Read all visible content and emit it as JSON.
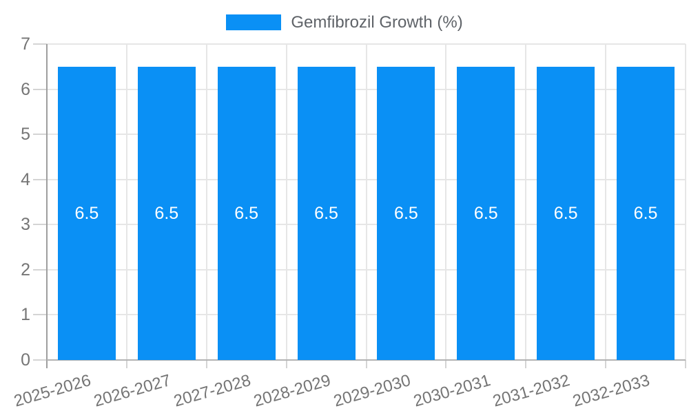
{
  "chart_data": {
    "type": "bar",
    "title": "",
    "legend": "Gemfibrozil Growth (%)",
    "legend_position": "top",
    "categories": [
      "2025-2026",
      "2026-2027",
      "2027-2028",
      "2028-2029",
      "2029-2030",
      "2030-2031",
      "2031-2032",
      "2032-2033"
    ],
    "series": [
      {
        "name": "Gemfibrozil Growth (%)",
        "values": [
          6.5,
          6.5,
          6.5,
          6.5,
          6.5,
          6.5,
          6.5,
          6.5
        ]
      }
    ],
    "bar_value_labels": [
      "6.5",
      "6.5",
      "6.5",
      "6.5",
      "6.5",
      "6.5",
      "6.5",
      "6.5"
    ],
    "xlabel": "",
    "ylabel": "",
    "ylim": [
      0,
      7
    ],
    "yticks": [
      0,
      1,
      2,
      3,
      4,
      5,
      6,
      7
    ],
    "grid": true,
    "colors": {
      "bar": "#0a90f5",
      "bar_label": "#ffffff",
      "tick_label": "#757575",
      "legend_label": "#5f6368",
      "gridline": "#e6e6e6",
      "tick_stub": "#d4d4d4",
      "axis_line": "#9e9e9e",
      "baseline": "#b3b3b3",
      "background": "#ffffff"
    }
  }
}
